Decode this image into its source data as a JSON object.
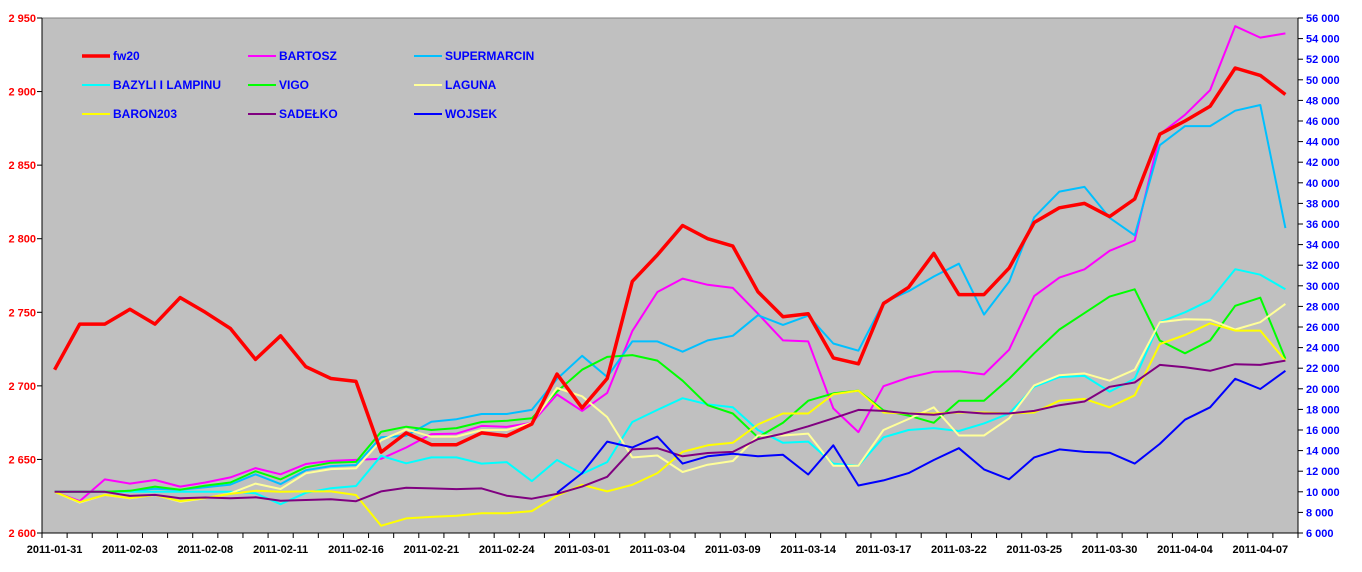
{
  "chart_data": {
    "type": "line",
    "title": "",
    "x_labels": [
      "2011-01-31",
      "2011-02-03",
      "2011-02-08",
      "2011-02-11",
      "2011-02-16",
      "2011-02-21",
      "2011-02-24",
      "2011-03-01",
      "2011-03-04",
      "2011-03-09",
      "2011-03-14",
      "2011-03-17",
      "2011-03-22",
      "2011-03-25",
      "2011-03-30",
      "2011-04-04",
      "2011-04-07"
    ],
    "x_label_every": 3,
    "n_points": 50,
    "y_left": {
      "range": [
        2600,
        2950
      ],
      "step": 50,
      "tick_labels": [
        "2 600",
        "2 650",
        "2 700",
        "2 750",
        "2 800",
        "2 850",
        "2 900",
        "2 950"
      ],
      "color": "#ff0000"
    },
    "y_right": {
      "range": [
        6000,
        56000
      ],
      "step": 2000,
      "tick_labels": [
        "6 000",
        "8 000",
        "10 000",
        "12 000",
        "14 000",
        "16 000",
        "18 000",
        "20 000",
        "22 000",
        "24 000",
        "26 000",
        "28 000",
        "30 000",
        "32 000",
        "34 000",
        "36 000",
        "38 000",
        "40 000",
        "42 000",
        "44 000",
        "46 000",
        "48 000",
        "50 000",
        "52 000",
        "54 000",
        "56 000"
      ],
      "color": "#0000ff"
    },
    "grid": false,
    "plot_background": "#c0c0c0",
    "legend_position": "top-left",
    "series": [
      {
        "name": "fw20",
        "axis": "left",
        "color": "#ff0000",
        "thick": true,
        "values": [
          2711,
          2742,
          2742,
          2752,
          2742,
          2760,
          2750,
          2739,
          2718,
          2734,
          2713,
          2705,
          2703,
          2655,
          2668,
          2660,
          2660,
          2668,
          2666,
          2674,
          2708,
          2685,
          2705,
          2771,
          2789,
          2809,
          2800,
          2795,
          2764,
          2747,
          2749,
          2719,
          2715,
          2756,
          2767,
          2790,
          2762,
          2762,
          2780,
          2811,
          2821,
          2824,
          2815,
          2827,
          2871,
          2880,
          2890,
          2916,
          2911,
          2898
        ]
      },
      {
        "name": "BARTOSZ",
        "axis": "right",
        "color": "#ff00ff",
        "values": [
          10000,
          9100,
          11200,
          10800,
          11150,
          10500,
          10900,
          11400,
          12300,
          11700,
          12700,
          13000,
          13100,
          13200,
          14300,
          15600,
          15650,
          16400,
          16300,
          16700,
          19450,
          17850,
          19600,
          25600,
          29400,
          30700,
          30100,
          29800,
          27300,
          24700,
          24600,
          18100,
          15800,
          20250,
          21100,
          21650,
          21700,
          21400,
          23800,
          29000,
          30800,
          31600,
          33400,
          34400,
          44700,
          46600,
          49000,
          55200,
          54100,
          54500
        ]
      },
      {
        "name": "SUPERMARCIN",
        "axis": "right",
        "color": "#00c0ff",
        "values": [
          10000,
          10000,
          10000,
          10100,
          10300,
          10200,
          10450,
          10700,
          11700,
          10750,
          12100,
          12500,
          12600,
          15300,
          15450,
          16800,
          17050,
          17550,
          17550,
          17950,
          20950,
          23200,
          21150,
          24600,
          24600,
          23600,
          24700,
          25150,
          27150,
          26200,
          27100,
          24400,
          23700,
          28400,
          29480,
          30900,
          32150,
          27200,
          30400,
          36650,
          39150,
          39600,
          36600,
          34900,
          43650,
          45500,
          45500,
          47000,
          47550,
          35600
        ]
      },
      {
        "name": "BAZYLI I LAMPINU",
        "axis": "right",
        "color": "#00ffff",
        "values": [
          10000,
          10000,
          10000,
          10000,
          10000,
          10000,
          10000,
          10000,
          9850,
          8800,
          9900,
          10350,
          10560,
          13500,
          12770,
          13340,
          13340,
          12740,
          12880,
          11040,
          13090,
          11750,
          12880,
          16780,
          17950,
          19090,
          18490,
          18200,
          16000,
          14760,
          14870,
          12740,
          12530,
          15290,
          16000,
          16180,
          15900,
          16640,
          17600,
          20190,
          21150,
          21250,
          19730,
          20970,
          26470,
          27430,
          28600,
          31610,
          31080,
          29660
        ]
      },
      {
        "name": "VIGO",
        "axis": "right",
        "color": "#00ff00",
        "values": [
          10000,
          10000,
          10000,
          10100,
          10500,
          10200,
          10600,
          10900,
          12000,
          11200,
          12380,
          12830,
          12900,
          15830,
          16320,
          16000,
          16180,
          16780,
          16890,
          17140,
          19730,
          21850,
          23100,
          23270,
          22740,
          20790,
          18410,
          17600,
          15290,
          16710,
          18840,
          19550,
          19830,
          17900,
          17400,
          16700,
          18840,
          18840,
          20970,
          23450,
          25760,
          27350,
          28950,
          29660,
          24690,
          23450,
          24690,
          28060,
          28840,
          22920
        ]
      },
      {
        "name": "LAGUNA",
        "axis": "right",
        "color": "#ffff99",
        "values": [
          10000,
          8950,
          9700,
          9370,
          9700,
          9040,
          9370,
          9850,
          10800,
          10270,
          11800,
          12200,
          12280,
          15000,
          16070,
          15350,
          15360,
          16000,
          16000,
          16700,
          20080,
          19270,
          17250,
          13340,
          13520,
          11920,
          12630,
          12990,
          15470,
          15470,
          15650,
          12530,
          12530,
          16000,
          17070,
          18200,
          15470,
          15470,
          17140,
          20330,
          21320,
          21500,
          20790,
          21850,
          26470,
          26750,
          26710,
          25760,
          26470,
          28240
        ]
      },
      {
        "name": "BARON203",
        "axis": "right",
        "color": "#ffff00",
        "values": [
          10000,
          9000,
          9700,
          9400,
          9700,
          9100,
          9400,
          9800,
          10100,
          10000,
          10040,
          10040,
          9690,
          6700,
          7420,
          7560,
          7670,
          7920,
          7920,
          8130,
          9620,
          10680,
          10040,
          10680,
          11820,
          13870,
          14510,
          14760,
          16530,
          17600,
          17600,
          19480,
          19830,
          17700,
          17600,
          17600,
          17700,
          17700,
          17600,
          17700,
          18840,
          19020,
          18200,
          19370,
          24340,
          25220,
          26360,
          25650,
          25650,
          22740
        ]
      },
      {
        "name": "SADEŁKO",
        "axis": "right",
        "color": "#800080",
        "values": [
          10000,
          10000,
          10000,
          9600,
          9700,
          9370,
          9450,
          9370,
          9470,
          9130,
          9200,
          9270,
          9090,
          10040,
          10400,
          10330,
          10260,
          10330,
          9620,
          9330,
          9800,
          10500,
          11460,
          14120,
          14230,
          13450,
          13770,
          13870,
          15120,
          15650,
          16360,
          17140,
          17950,
          17850,
          17600,
          17490,
          17780,
          17600,
          17600,
          17850,
          18410,
          18770,
          20190,
          20610,
          22320,
          22100,
          21750,
          22390,
          22320,
          22740
        ]
      },
      {
        "name": "WOJSEK",
        "axis": "right",
        "color": "#0000ff",
        "values": [
          null,
          null,
          null,
          null,
          null,
          null,
          null,
          null,
          null,
          null,
          null,
          null,
          null,
          null,
          null,
          null,
          null,
          null,
          null,
          null,
          9900,
          11820,
          14870,
          14300,
          15360,
          12740,
          13450,
          13700,
          13450,
          13590,
          11680,
          14510,
          10610,
          11110,
          11820,
          13090,
          14230,
          12170,
          11210,
          13340,
          14120,
          13870,
          13800,
          12740,
          14650,
          17000,
          18200,
          20970,
          19980,
          21750
        ]
      }
    ]
  }
}
